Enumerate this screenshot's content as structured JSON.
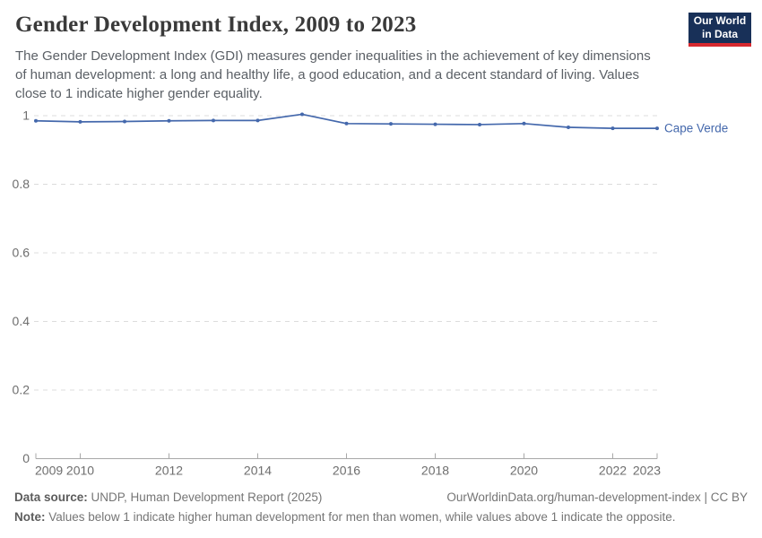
{
  "header": {
    "title": "Gender Development Index, 2009 to 2023",
    "subtitle": "The Gender Development Index (GDI) measures gender inequalities in the achievement of key dimensions of human development: a long and healthy life, a good education, and a decent standard of living. Values close to 1 indicate higher gender equality.",
    "logo": {
      "line1": "Our World",
      "line2": "in Data",
      "bg_color": "#183058",
      "bar_color": "#d7292f"
    }
  },
  "chart_data": {
    "type": "line",
    "title": "Gender Development Index, 2009 to 2023",
    "x": [
      2009,
      2010,
      2011,
      2012,
      2013,
      2014,
      2015,
      2016,
      2017,
      2018,
      2019,
      2020,
      2021,
      2022,
      2023
    ],
    "series": [
      {
        "name": "Cape Verde",
        "color": "#4468ac",
        "values": [
          0.985,
          0.982,
          0.983,
          0.985,
          0.986,
          0.986,
          1.004,
          0.977,
          0.976,
          0.975,
          0.974,
          0.977,
          0.966,
          0.963,
          0.963
        ]
      }
    ],
    "xlabel": "",
    "ylabel": "",
    "ylim": [
      0,
      1
    ],
    "xlim": [
      2009,
      2023
    ],
    "yticks": [
      {
        "value": 0,
        "label": "0"
      },
      {
        "value": 0.2,
        "label": "0.2"
      },
      {
        "value": 0.4,
        "label": "0.4"
      },
      {
        "value": 0.6,
        "label": "0.6"
      },
      {
        "value": 0.8,
        "label": "0.8"
      },
      {
        "value": 1,
        "label": "1"
      }
    ],
    "xticks": [
      2009,
      2010,
      2012,
      2014,
      2016,
      2018,
      2020,
      2022,
      2023
    ],
    "grid": "horizontal-dashed",
    "legend_position": "end-of-line-label",
    "colors": {
      "gridline": "#dcdcdc",
      "axis": "#a8a8a8",
      "tick_text": "#6e6e6e"
    }
  },
  "footer": {
    "datasource_label": "Data source:",
    "datasource_value": "UNDP, Human Development Report (2025)",
    "citation": "OurWorldinData.org/human-development-index | CC BY",
    "note_label": "Note:",
    "note_value": "Values below 1 indicate higher human development for men than women, while values above 1 indicate the opposite."
  }
}
